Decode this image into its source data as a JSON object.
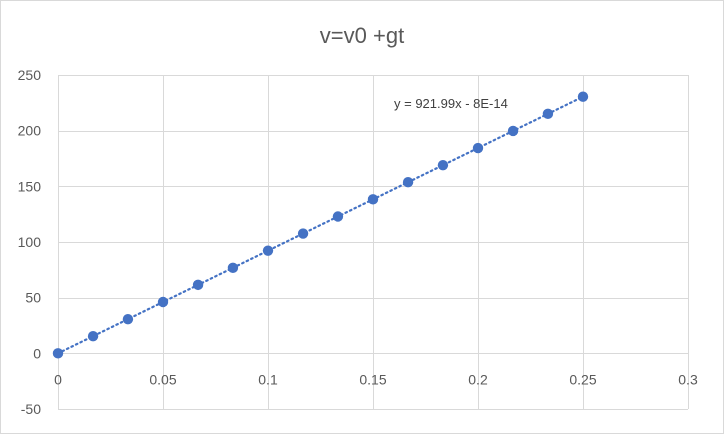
{
  "chart_data": {
    "type": "scatter",
    "title": "v=v0 +gt",
    "xlabel": "",
    "ylabel": "",
    "xlim": [
      0,
      0.3
    ],
    "ylim": [
      -50,
      250
    ],
    "x_ticks": [
      0,
      0.05,
      0.1,
      0.15,
      0.2,
      0.25,
      0.3
    ],
    "x_tick_labels": [
      "0",
      "0.05",
      "0.1",
      "0.15",
      "0.2",
      "0.25",
      "0.3"
    ],
    "y_ticks": [
      -50,
      0,
      50,
      100,
      150,
      200,
      250
    ],
    "y_tick_labels": [
      "-50",
      "0",
      "50",
      "100",
      "150",
      "200",
      "250"
    ],
    "grid": true,
    "marker_color": "#4472c4",
    "series": [
      {
        "x": [
          0,
          0.0167,
          0.0333,
          0.05,
          0.0667,
          0.0833,
          0.1,
          0.1167,
          0.1333,
          0.15,
          0.1667,
          0.1833,
          0.2,
          0.2167,
          0.2333,
          0.25
        ],
        "y": [
          0,
          15.4,
          30.7,
          46.1,
          61.5,
          76.8,
          92.2,
          107.6,
          122.9,
          138.3,
          153.7,
          169.0,
          184.4,
          199.8,
          215.1,
          230.5
        ]
      }
    ],
    "trendline": {
      "type": "linear",
      "slope": 921.99,
      "intercept": 0,
      "x_range": [
        0,
        0.25
      ],
      "equation_label": "y = 921.99x - 8E-14",
      "style": "dotted"
    }
  }
}
